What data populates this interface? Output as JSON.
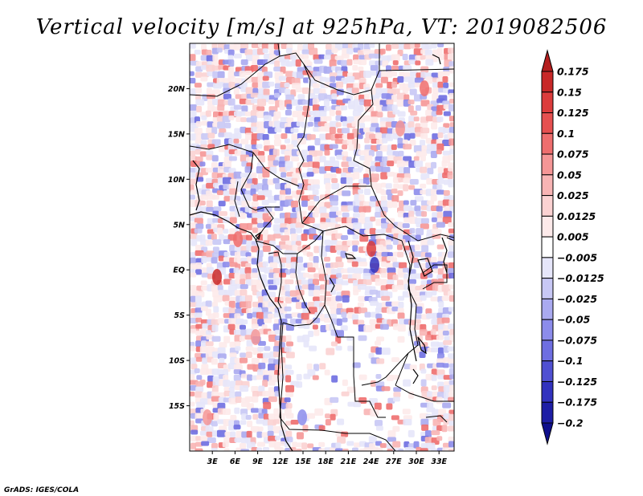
{
  "chart_data": {
    "type": "heatmap",
    "title": "Vertical velocity [m/s] at 925hPa, VT: 2019082506",
    "variable": "Vertical velocity",
    "units": "m/s",
    "level": "925hPa",
    "valid_time": "2019082506",
    "x_axis": {
      "label": "",
      "range": [
        0,
        35
      ],
      "ticks": [
        3,
        6,
        9,
        12,
        15,
        18,
        21,
        24,
        27,
        30,
        33
      ],
      "tick_labels": [
        "3E",
        "6E",
        "9E",
        "12E",
        "15E",
        "18E",
        "21E",
        "24E",
        "27E",
        "30E",
        "33E"
      ]
    },
    "y_axis": {
      "label": "",
      "range": [
        -20,
        25
      ],
      "ticks": [
        20,
        15,
        10,
        5,
        0,
        -5,
        -10,
        -15
      ],
      "tick_labels": [
        "20N",
        "15N",
        "10N",
        "5N",
        "EQ",
        "5S",
        "10S",
        "15S"
      ]
    },
    "colorbar": {
      "levels": [
        "0.175",
        "0.15",
        "0.125",
        "0.1",
        "0.075",
        "0.05",
        "0.025",
        "0.0125",
        "0.005",
        "−0.005",
        "−0.0125",
        "−0.025",
        "−0.05",
        "−0.075",
        "−0.1",
        "−0.125",
        "−0.175",
        "−0.2"
      ],
      "colors": [
        "#b41e1e",
        "#c82828",
        "#dc3c3c",
        "#e65050",
        "#ee6e6e",
        "#f59696",
        "#f8b4b4",
        "#fbd2d2",
        "#fdeaea",
        "#ffffff",
        "#e6e6fa",
        "#c8c8f5",
        "#aaaaf0",
        "#8c8ceb",
        "#6e6ee1",
        "#5050d2",
        "#3232be",
        "#1e1ea5",
        "#0f0f8c"
      ],
      "placement": "right"
    },
    "credit": "GrADS: IGES/COLA"
  }
}
